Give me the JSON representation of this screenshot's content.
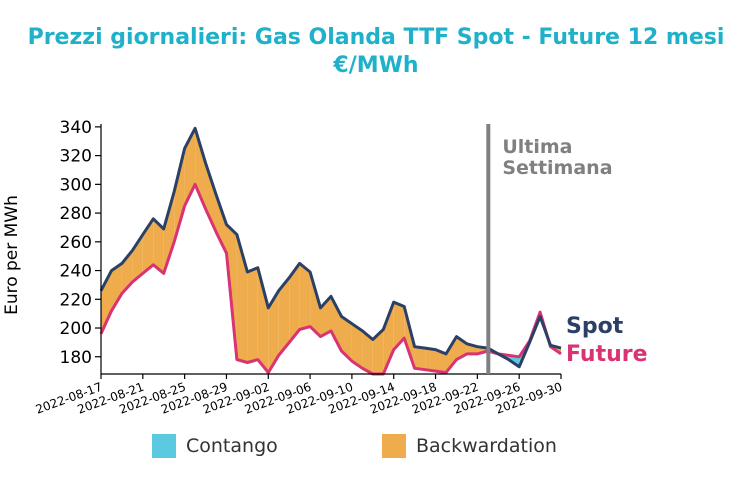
{
  "chart_data": {
    "type": "area",
    "title_line1": "Prezzi giornalieri: Gas Olanda TTF Spot - Future 12 mesi",
    "title_line2": "€/MWh",
    "ylabel": "Euro per MWh",
    "xlabel": "",
    "ylim": [
      168,
      342
    ],
    "yticks": [
      180,
      200,
      220,
      240,
      260,
      280,
      300,
      320,
      340
    ],
    "xlim": [
      "2022-08-17",
      "2022-09-30"
    ],
    "xticks": [
      "2022-08-17",
      "2022-08-21",
      "2022-08-25",
      "2022-08-29",
      "2022-09-02",
      "2022-09-06",
      "2022-09-10",
      "2022-09-14",
      "2022-09-18",
      "2022-09-22",
      "2022-09-26",
      "2022-09-30"
    ],
    "x": [
      "2022-08-17",
      "2022-08-18",
      "2022-08-19",
      "2022-08-20",
      "2022-08-21",
      "2022-08-22",
      "2022-08-23",
      "2022-08-24",
      "2022-08-25",
      "2022-08-26",
      "2022-08-27",
      "2022-08-28",
      "2022-08-29",
      "2022-08-30",
      "2022-08-31",
      "2022-09-01",
      "2022-09-02",
      "2022-09-03",
      "2022-09-04",
      "2022-09-05",
      "2022-09-06",
      "2022-09-07",
      "2022-09-08",
      "2022-09-09",
      "2022-09-10",
      "2022-09-11",
      "2022-09-12",
      "2022-09-13",
      "2022-09-14",
      "2022-09-15",
      "2022-09-16",
      "2022-09-17",
      "2022-09-18",
      "2022-09-19",
      "2022-09-20",
      "2022-09-21",
      "2022-09-22",
      "2022-09-23",
      "2022-09-24",
      "2022-09-25",
      "2022-09-26",
      "2022-09-27",
      "2022-09-28",
      "2022-09-29",
      "2022-09-30"
    ],
    "series": [
      {
        "name": "Spot",
        "color": "#2b4066",
        "values": [
          226,
          240,
          245,
          254,
          265,
          276,
          269,
          295,
          325,
          339,
          315,
          293,
          272,
          265,
          239,
          242,
          214,
          226,
          235,
          245,
          239,
          214,
          222,
          208,
          203,
          198,
          192,
          199,
          218,
          215,
          187,
          186,
          185,
          182,
          194,
          189,
          187,
          186,
          182,
          178,
          173,
          190,
          208,
          188,
          186
        ]
      },
      {
        "name": "Future",
        "color": "#d93374",
        "values": [
          196,
          212,
          224,
          232,
          238,
          244,
          238,
          260,
          285,
          300,
          283,
          267,
          252,
          178,
          176,
          178,
          169,
          181,
          190,
          199,
          201,
          194,
          198,
          184,
          177,
          172,
          168,
          168,
          185,
          193,
          172,
          171,
          170,
          169,
          178,
          182,
          182,
          184,
          182,
          181,
          180,
          191,
          211,
          187,
          182
        ]
      }
    ],
    "annotation": {
      "line1": "Ultima",
      "line2": "Settimana",
      "date": "2022-09-23"
    },
    "legend": [
      {
        "label": "Contango",
        "color": "#5bc9e0"
      },
      {
        "label": "Backwardation",
        "color": "#eeac4c"
      }
    ],
    "grid": false,
    "legend_position": "bottom"
  }
}
